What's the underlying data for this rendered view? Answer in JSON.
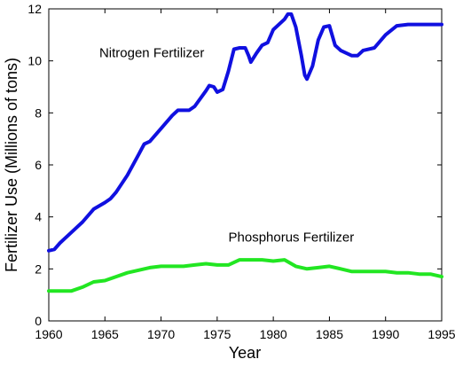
{
  "chart_data": {
    "type": "line",
    "title": "",
    "xlabel": "Year",
    "ylabel": "Fertilizer Use (Millions of tons)",
    "xlim": [
      1960,
      1995
    ],
    "ylim": [
      0,
      12
    ],
    "x_ticks": [
      "1960",
      "1965",
      "1970",
      "1975",
      "1980",
      "1985",
      "1990",
      "1995"
    ],
    "y_ticks": [
      "0",
      "2",
      "4",
      "6",
      "8",
      "10",
      "12"
    ],
    "grid": false,
    "legend": "none",
    "series": [
      {
        "name": "Nitrogen Fertilizer",
        "color": "#1010e0",
        "x": [
          1960,
          1960.5,
          1961,
          1962,
          1963,
          1964,
          1965,
          1965.5,
          1966,
          1967,
          1968,
          1968.5,
          1969,
          1970,
          1971,
          1971.5,
          1972,
          1972.5,
          1973,
          1974,
          1974.3,
          1974.7,
          1975,
          1975.5,
          1976,
          1976.5,
          1977,
          1977.5,
          1977.8,
          1978,
          1978.5,
          1979,
          1979.5,
          1980,
          1981,
          1981.3,
          1981.6,
          1982,
          1982.5,
          1982.8,
          1983,
          1983.5,
          1984,
          1984.5,
          1985,
          1985.5,
          1986,
          1987,
          1987.5,
          1988,
          1989,
          1990,
          1991,
          1992,
          1993,
          1994,
          1995
        ],
        "values": [
          2.7,
          2.75,
          3.0,
          3.4,
          3.8,
          4.3,
          4.55,
          4.7,
          4.95,
          5.6,
          6.4,
          6.8,
          6.9,
          7.4,
          7.9,
          8.1,
          8.1,
          8.1,
          8.25,
          8.85,
          9.05,
          9.0,
          8.8,
          8.9,
          9.6,
          10.45,
          10.5,
          10.5,
          10.2,
          9.95,
          10.3,
          10.6,
          10.7,
          11.2,
          11.6,
          11.8,
          11.8,
          11.3,
          10.2,
          9.45,
          9.3,
          9.8,
          10.8,
          11.3,
          11.35,
          10.6,
          10.4,
          10.2,
          10.2,
          10.4,
          10.5,
          11.0,
          11.35,
          11.4,
          11.4,
          11.4,
          11.4
        ]
      },
      {
        "name": "Phosphorus Fertilizer",
        "color": "#22e622",
        "x": [
          1960,
          1961,
          1962,
          1963,
          1964,
          1965,
          1966,
          1967,
          1968,
          1969,
          1970,
          1971,
          1972,
          1973,
          1974,
          1975,
          1976,
          1977,
          1978,
          1979,
          1980,
          1981,
          1982,
          1983,
          1984,
          1985,
          1986,
          1987,
          1988,
          1989,
          1990,
          1991,
          1992,
          1993,
          1994,
          1995
        ],
        "values": [
          1.15,
          1.15,
          1.15,
          1.3,
          1.5,
          1.55,
          1.7,
          1.85,
          1.95,
          2.05,
          2.1,
          2.1,
          2.1,
          2.15,
          2.2,
          2.15,
          2.15,
          2.35,
          2.35,
          2.35,
          2.3,
          2.35,
          2.1,
          2.0,
          2.05,
          2.1,
          2.0,
          1.9,
          1.9,
          1.9,
          1.9,
          1.85,
          1.85,
          1.8,
          1.8,
          1.7
        ]
      }
    ],
    "annotations": [
      {
        "text": "Nitrogen Fertilizer",
        "x": 1964.5,
        "y": 10.15
      },
      {
        "text": "Phosphorus Fertilizer",
        "x": 1976,
        "y": 3.05
      }
    ]
  }
}
